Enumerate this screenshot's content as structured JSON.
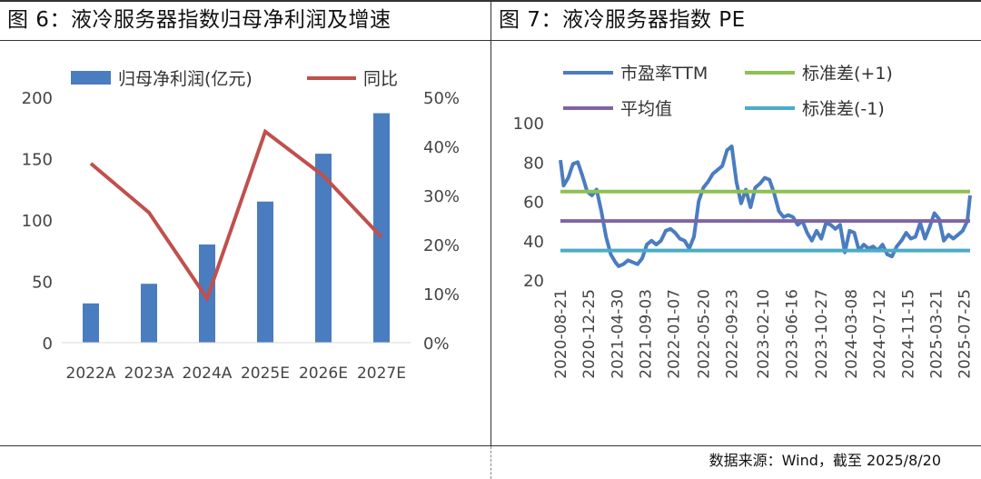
{
  "left": {
    "title": "图 6：液冷服务器指数归母净利润及增速"
  },
  "right": {
    "title": "图 7：液冷服务器指数 PE"
  },
  "source": "数据来源：Wind，截至 2025/8/20",
  "colors": {
    "bar": "#4a7cc0",
    "growth_line": "#c0504d",
    "pe_line": "#4a7cc0",
    "std_plus": "#8dc153",
    "mean": "#8064a2",
    "std_minus": "#4bacc6"
  },
  "chart_data": [
    {
      "type": "bar",
      "categories": [
        "2022A",
        "2023A",
        "2024A",
        "2025E",
        "2026E",
        "2027E"
      ],
      "series": [
        {
          "name": "归母净利润(亿元)",
          "kind": "bar",
          "axis": "left",
          "values": [
            32,
            48,
            80,
            115,
            154,
            187
          ]
        },
        {
          "name": "同比",
          "kind": "line",
          "axis": "right",
          "values": [
            36.5,
            26.5,
            9.0,
            43.0,
            34.0,
            21.5
          ]
        }
      ],
      "ylim": [
        0,
        200
      ],
      "yticks": [
        "0",
        "50",
        "100",
        "150",
        "200"
      ],
      "y2lim": [
        0,
        50
      ],
      "y2ticks": [
        "0%",
        "10%",
        "20%",
        "30%",
        "40%",
        "50%"
      ],
      "legend_position": "top",
      "grid": false
    },
    {
      "type": "line",
      "x_start": "2020-08-21",
      "x_end": "2025-08-20",
      "xticks": [
        "2020-08-21",
        "2020-12-25",
        "2021-04-30",
        "2021-09-03",
        "2022-01-07",
        "2022-05-20",
        "2022-09-23",
        "2023-02-10",
        "2023-06-16",
        "2023-10-27",
        "2024-03-08",
        "2024-07-12",
        "2024-11-15",
        "2025-03-21",
        "2025-07-25"
      ],
      "series": [
        {
          "name": "市盈率TTM",
          "x": [
            "2020-08-21",
            "2020-09-04",
            "2020-09-25",
            "2020-10-16",
            "2020-11-06",
            "2020-11-27",
            "2020-12-18",
            "2021-01-08",
            "2021-01-29",
            "2021-02-19",
            "2021-03-12",
            "2021-04-02",
            "2021-04-23",
            "2021-05-07",
            "2021-05-28",
            "2021-06-18",
            "2021-07-09",
            "2021-07-30",
            "2021-08-20",
            "2021-09-10",
            "2021-10-01",
            "2021-10-22",
            "2021-11-12",
            "2021-12-03",
            "2021-12-24",
            "2022-01-14",
            "2022-02-04",
            "2022-02-25",
            "2022-03-18",
            "2022-04-08",
            "2022-04-29",
            "2022-05-20",
            "2022-06-10",
            "2022-07-01",
            "2022-07-22",
            "2022-08-12",
            "2022-09-02",
            "2022-09-23",
            "2022-10-14",
            "2022-11-04",
            "2022-11-25",
            "2022-12-16",
            "2023-01-06",
            "2023-01-27",
            "2023-02-17",
            "2023-03-10",
            "2023-03-31",
            "2023-04-21",
            "2023-05-12",
            "2023-06-02",
            "2023-06-23",
            "2023-07-14",
            "2023-08-04",
            "2023-08-25",
            "2023-09-15",
            "2023-10-06",
            "2023-10-27",
            "2023-11-17",
            "2023-12-08",
            "2023-12-29",
            "2024-01-19",
            "2024-02-09",
            "2024-03-01",
            "2024-03-22",
            "2024-04-12",
            "2024-05-03",
            "2024-05-24",
            "2024-06-14",
            "2024-07-05",
            "2024-07-26",
            "2024-08-16",
            "2024-09-06",
            "2024-09-27",
            "2024-10-18",
            "2024-11-08",
            "2024-11-29",
            "2024-12-20",
            "2025-01-10",
            "2025-01-31",
            "2025-02-21",
            "2025-03-14",
            "2025-04-04",
            "2025-04-25",
            "2025-05-16",
            "2025-06-06",
            "2025-06-27",
            "2025-07-18",
            "2025-08-08",
            "2025-08-20"
          ],
          "y": [
            81,
            68,
            72,
            79,
            80,
            73,
            65,
            63,
            66,
            55,
            42,
            33,
            29,
            27,
            28,
            30,
            29,
            28,
            31,
            38,
            40,
            38,
            40,
            45,
            46,
            44,
            41,
            40,
            36,
            42,
            60,
            67,
            70,
            74,
            76,
            78,
            86,
            88,
            70,
            59,
            66,
            57,
            67,
            69,
            72,
            71,
            64,
            55,
            52,
            53,
            52,
            48,
            50,
            44,
            40,
            45,
            41,
            49,
            48,
            46,
            48,
            34,
            45,
            44,
            35,
            38,
            36,
            37,
            35,
            38,
            33,
            32,
            37,
            40,
            44,
            41,
            42,
            49,
            41,
            47,
            54,
            51,
            40,
            43,
            41,
            43,
            45,
            50,
            63
          ]
        },
        {
          "name": "标准差(+1)",
          "value": 65
        },
        {
          "name": "平均值",
          "value": 50
        },
        {
          "name": "标准差(-1)",
          "value": 35
        }
      ],
      "ylim": [
        20,
        100
      ],
      "yticks": [
        "20",
        "40",
        "60",
        "80",
        "100"
      ],
      "legend_position": "top",
      "grid": false
    }
  ]
}
